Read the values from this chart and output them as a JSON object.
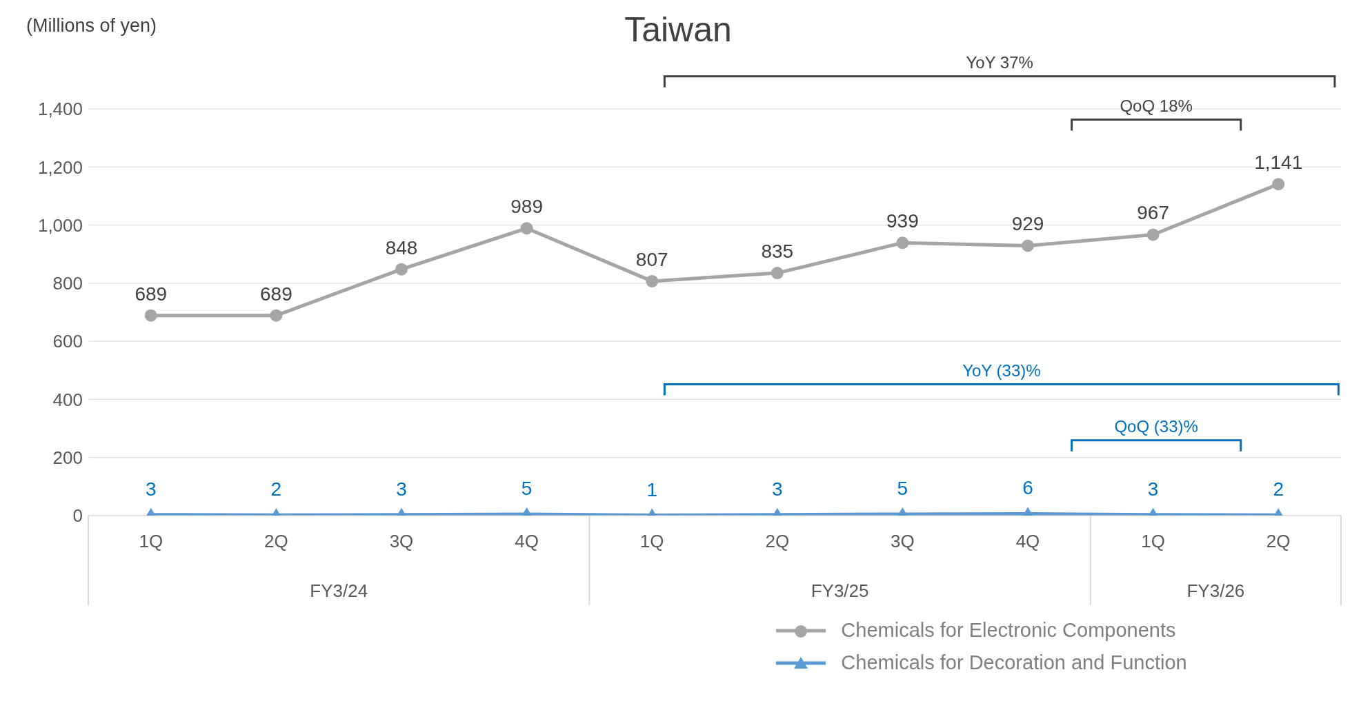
{
  "chart_data": {
    "type": "line",
    "title": "Taiwan",
    "ylabel": "(Millions of yen)",
    "categories": [
      "1Q",
      "2Q",
      "3Q",
      "4Q",
      "1Q",
      "2Q",
      "3Q",
      "4Q",
      "1Q",
      "2Q"
    ],
    "series": [
      {
        "name": "Chemicals for Electronic Components",
        "color": "#a5a5a5",
        "marker": "circle",
        "values": [
          689,
          689,
          848,
          989,
          807,
          835,
          939,
          929,
          967,
          1141
        ],
        "value_labels": [
          "689",
          "689",
          "848",
          "989",
          "807",
          "835",
          "939",
          "929",
          "967",
          "1,141"
        ]
      },
      {
        "name": "Chemicals for Decoration and Function",
        "color": "#5b9bd5",
        "marker": "triangle",
        "values": [
          3,
          2,
          3,
          5,
          1,
          3,
          5,
          6,
          3,
          2
        ]
      }
    ],
    "annotations": [
      "FY3/24",
      "FY3/25",
      "FY3/26",
      "YoY 37%",
      "QoQ 18%",
      "YoY (33)%",
      "QoQ (33)%"
    ],
    "ylim": [
      0,
      1400
    ],
    "yticks": [
      0,
      200,
      400,
      600,
      800,
      {
        "value": 1000,
        "label": "1,000"
      },
      {
        "value": 1200,
        "label": "1,200"
      },
      {
        "value": 1400,
        "label": "1,400"
      }
    ],
    "grid": "y",
    "legend": "bottom",
    "data_labels": true,
    "line_style": "solid"
  }
}
